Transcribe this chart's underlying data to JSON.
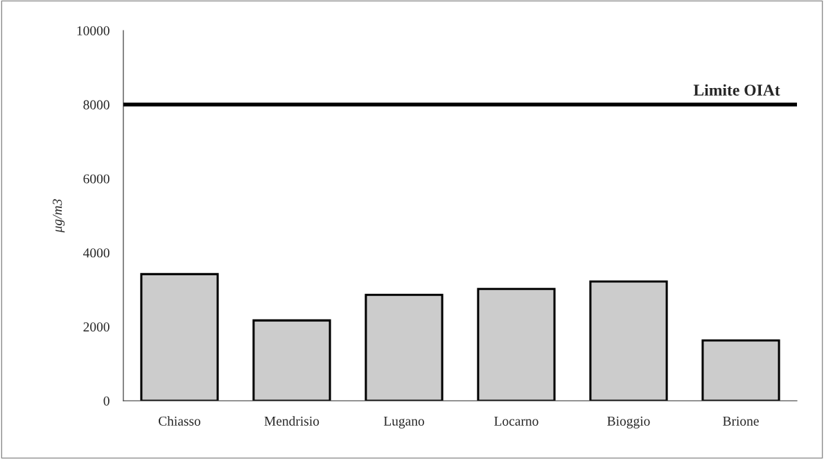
{
  "chart_data": {
    "type": "bar",
    "ylabel": "μg/m3",
    "categories": [
      "Chiasso",
      "Mendrisio",
      "Lugano",
      "Locarno",
      "Bioggio",
      "Brione"
    ],
    "values": [
      3420,
      2170,
      2860,
      3020,
      3220,
      1630
    ],
    "color": "#cccccc",
    "ylim": [
      0,
      10000
    ],
    "yticks": [
      0,
      2000,
      4000,
      6000,
      8000,
      10000
    ],
    "grid": false,
    "legend": false,
    "ref_lines": [
      {
        "axis": "y",
        "value": 8000,
        "label": "Limite OIAt",
        "color": "#000000",
        "line_style": "solid"
      }
    ]
  }
}
